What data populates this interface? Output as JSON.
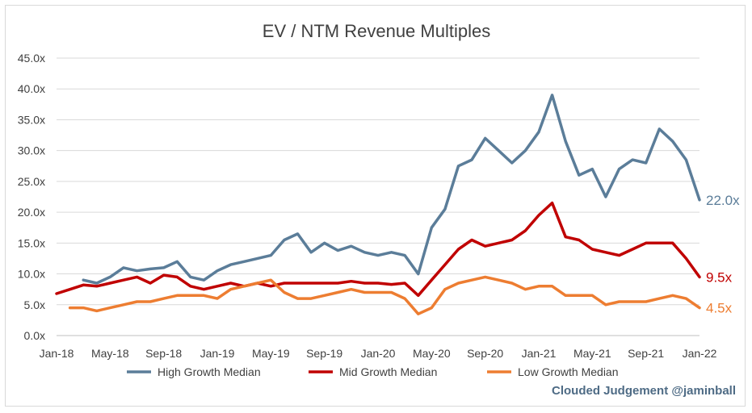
{
  "chart_data": {
    "type": "line",
    "title": "EV / NTM Revenue Multiples",
    "xlabel": "",
    "ylabel": "",
    "x_ticks": [
      "Jan-18",
      "May-18",
      "Sep-18",
      "Jan-19",
      "May-19",
      "Sep-19",
      "Jan-20",
      "May-20",
      "Sep-20",
      "Jan-21",
      "May-21",
      "Sep-21",
      "Jan-22"
    ],
    "y_ticks": [
      "0.0x",
      "5.0x",
      "10.0x",
      "15.0x",
      "20.0x",
      "25.0x",
      "30.0x",
      "35.0x",
      "40.0x",
      "45.0x"
    ],
    "ylim": [
      0,
      45
    ],
    "grid": true,
    "legend_position": "bottom",
    "series": [
      {
        "name": "High Growth Median",
        "color": "#5b7d99",
        "end_label": "22.0x",
        "x": [
          "2018-03",
          "2018-04",
          "2018-05",
          "2018-06",
          "2018-07",
          "2018-08",
          "2018-09",
          "2018-10",
          "2018-11",
          "2018-12",
          "2019-01",
          "2019-02",
          "2019-03",
          "2019-04",
          "2019-05",
          "2019-06",
          "2019-07",
          "2019-08",
          "2019-09",
          "2019-10",
          "2019-11",
          "2019-12",
          "2020-01",
          "2020-02",
          "2020-03",
          "2020-04",
          "2020-05",
          "2020-06",
          "2020-07",
          "2020-08",
          "2020-09",
          "2020-10",
          "2020-11",
          "2020-12",
          "2021-01",
          "2021-02",
          "2021-03",
          "2021-04",
          "2021-05",
          "2021-06",
          "2021-07",
          "2021-08",
          "2021-09",
          "2021-10",
          "2021-11",
          "2021-12",
          "2022-01"
        ],
        "values": [
          9.0,
          8.5,
          9.5,
          11.0,
          10.5,
          10.8,
          11.0,
          12.0,
          9.5,
          9.0,
          10.5,
          11.5,
          12.0,
          12.5,
          13.0,
          15.5,
          16.5,
          13.5,
          15.0,
          13.8,
          14.5,
          13.5,
          13.0,
          13.5,
          13.0,
          10.0,
          17.5,
          20.5,
          27.5,
          28.5,
          32.0,
          30.0,
          28.0,
          30.0,
          33.0,
          39.0,
          31.5,
          26.0,
          27.0,
          22.5,
          27.0,
          28.5,
          28.0,
          33.5,
          31.5,
          28.5,
          22.0
        ]
      },
      {
        "name": "Mid Growth Median",
        "color": "#c00000",
        "end_label": "9.5x",
        "x": [
          "2018-01",
          "2018-02",
          "2018-03",
          "2018-04",
          "2018-05",
          "2018-06",
          "2018-07",
          "2018-08",
          "2018-09",
          "2018-10",
          "2018-11",
          "2018-12",
          "2019-01",
          "2019-02",
          "2019-03",
          "2019-04",
          "2019-05",
          "2019-06",
          "2019-07",
          "2019-08",
          "2019-09",
          "2019-10",
          "2019-11",
          "2019-12",
          "2020-01",
          "2020-02",
          "2020-03",
          "2020-04",
          "2020-05",
          "2020-06",
          "2020-07",
          "2020-08",
          "2020-09",
          "2020-10",
          "2020-11",
          "2020-12",
          "2021-01",
          "2021-02",
          "2021-03",
          "2021-04",
          "2021-05",
          "2021-06",
          "2021-07",
          "2021-08",
          "2021-09",
          "2021-10",
          "2021-11",
          "2021-12",
          "2022-01"
        ],
        "values": [
          6.8,
          7.5,
          8.2,
          8.0,
          8.5,
          9.0,
          9.5,
          8.5,
          9.8,
          9.5,
          8.0,
          7.5,
          8.0,
          8.5,
          8.0,
          8.5,
          8.0,
          8.5,
          8.5,
          8.5,
          8.5,
          8.5,
          8.8,
          8.5,
          8.5,
          8.3,
          8.5,
          6.5,
          9.0,
          11.5,
          14.0,
          15.5,
          14.5,
          15.0,
          15.5,
          17.0,
          19.5,
          21.5,
          16.0,
          15.5,
          14.0,
          13.5,
          13.0,
          14.0,
          15.0,
          15.0,
          15.0,
          12.5,
          9.5
        ]
      },
      {
        "name": "Low Growth Median",
        "color": "#ed7d31",
        "end_label": "4.5x",
        "x": [
          "2018-02",
          "2018-03",
          "2018-04",
          "2018-05",
          "2018-06",
          "2018-07",
          "2018-08",
          "2018-09",
          "2018-10",
          "2018-11",
          "2018-12",
          "2019-01",
          "2019-02",
          "2019-03",
          "2019-04",
          "2019-05",
          "2019-06",
          "2019-07",
          "2019-08",
          "2019-09",
          "2019-10",
          "2019-11",
          "2019-12",
          "2020-01",
          "2020-02",
          "2020-03",
          "2020-04",
          "2020-05",
          "2020-06",
          "2020-07",
          "2020-08",
          "2020-09",
          "2020-10",
          "2020-11",
          "2020-12",
          "2021-01",
          "2021-02",
          "2021-03",
          "2021-04",
          "2021-05",
          "2021-06",
          "2021-07",
          "2021-08",
          "2021-09",
          "2021-10",
          "2021-11",
          "2021-12",
          "2022-01"
        ],
        "values": [
          4.5,
          4.5,
          4.0,
          4.5,
          5.0,
          5.5,
          5.5,
          6.0,
          6.5,
          6.5,
          6.5,
          6.0,
          7.5,
          8.0,
          8.5,
          9.0,
          7.0,
          6.0,
          6.0,
          6.5,
          7.0,
          7.5,
          7.0,
          7.0,
          7.0,
          6.0,
          3.5,
          4.5,
          7.5,
          8.5,
          9.0,
          9.5,
          9.0,
          8.5,
          7.5,
          8.0,
          8.0,
          6.5,
          6.5,
          6.5,
          5.0,
          5.5,
          5.5,
          5.5,
          6.0,
          6.5,
          6.0,
          4.5
        ]
      }
    ]
  },
  "watermark": "Clouded Judgement @jaminball"
}
